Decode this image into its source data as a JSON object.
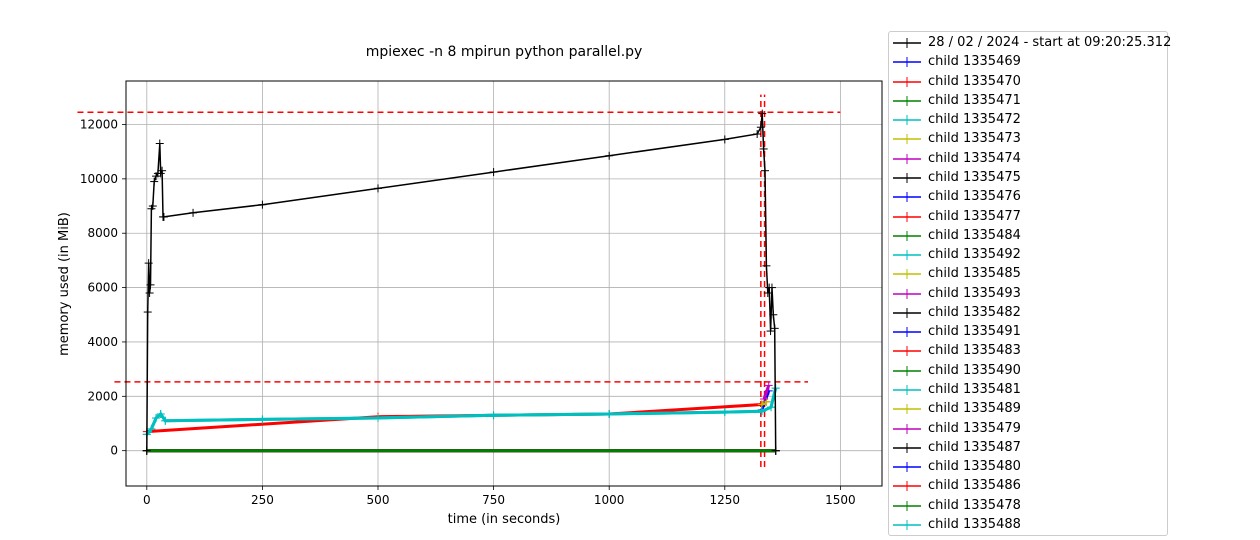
{
  "chart_data": {
    "type": "line",
    "title": "mpiexec -n 8 mpirun python parallel.py",
    "xlabel": "time (in seconds)",
    "ylabel": "memory used (in MiB)",
    "xlim": [
      -45,
      1590
    ],
    "ylim": [
      -1300,
      13600
    ],
    "xticks": [
      0,
      250,
      500,
      750,
      1000,
      1250,
      1500
    ],
    "xtick_labels": [
      "0",
      "250",
      "500",
      "750",
      "1000",
      "1250",
      "1500"
    ],
    "yticks": [
      0,
      2000,
      4000,
      6000,
      8000,
      10000,
      12000
    ],
    "ytick_labels": [
      "0",
      "2000",
      "4000",
      "6000",
      "8000",
      "10000",
      "12000"
    ],
    "grid": true,
    "legend_placement": "outside right",
    "series": [
      {
        "name": "28 / 02 / 2024 - start at 09:20:25.312",
        "color": "#000000",
        "x": [
          0,
          2,
          4,
          6,
          8,
          10,
          13,
          16,
          20,
          24,
          28,
          30,
          33,
          35,
          37,
          100,
          250,
          500,
          750,
          1000,
          1250,
          1320,
          1328,
          1331,
          1334,
          1337,
          1340,
          1343,
          1346,
          1349,
          1352,
          1355,
          1358,
          1360
        ],
        "y": [
          0,
          5100,
          6900,
          5800,
          6100,
          8900,
          9000,
          9900,
          10100,
          10200,
          11300,
          10200,
          10300,
          8600,
          8600,
          8750,
          9050,
          9650,
          10250,
          10850,
          11450,
          11650,
          11900,
          12400,
          11100,
          10300,
          6800,
          5800,
          6000,
          4400,
          6000,
          5000,
          4500,
          0
        ]
      },
      {
        "name": "child 1335469",
        "color": "#0000ff",
        "x": [
          1330,
          1345
        ],
        "y": [
          1500,
          2200
        ]
      },
      {
        "name": "child 1335470",
        "color": "#ff0000",
        "x": [
          0,
          500,
          1000,
          1330,
          1340
        ],
        "y": [
          700,
          1250,
          1350,
          1700,
          1800
        ]
      },
      {
        "name": "child 1335471",
        "color": "#008000",
        "x": [
          0,
          1360
        ],
        "y": [
          0,
          0
        ]
      },
      {
        "name": "child 1335472",
        "color": "#00bfbf",
        "x": [
          0,
          10,
          20,
          30,
          40,
          250,
          500,
          750,
          1000,
          1250,
          1330,
          1350,
          1360
        ],
        "y": [
          600,
          800,
          1200,
          1350,
          1100,
          1150,
          1200,
          1300,
          1350,
          1420,
          1450,
          1600,
          2300
        ]
      },
      {
        "name": "child 1335473",
        "color": "#bfbf00",
        "x": [
          1330,
          1340
        ],
        "y": [
          1700,
          1800
        ]
      },
      {
        "name": "child 1335474",
        "color": "#bf00bf",
        "x": [
          1335,
          1345
        ],
        "y": [
          1900,
          2400
        ]
      },
      {
        "name": "child 1335475",
        "color": "#000000",
        "x": [
          0,
          1360
        ],
        "y": [
          0,
          0
        ]
      },
      {
        "name": "child 1335476",
        "color": "#0000ff",
        "x": [
          0,
          1360
        ],
        "y": [
          0,
          0
        ]
      },
      {
        "name": "child 1335477",
        "color": "#ff0000",
        "x": [
          0,
          1360
        ],
        "y": [
          0,
          0
        ]
      },
      {
        "name": "child 1335484",
        "color": "#008000",
        "x": [
          0,
          1360
        ],
        "y": [
          0,
          0
        ]
      },
      {
        "name": "child 1335492",
        "color": "#00bfbf",
        "x": [
          0,
          1360
        ],
        "y": [
          0,
          0
        ]
      },
      {
        "name": "child 1335485",
        "color": "#bfbf00",
        "x": [
          0,
          1360
        ],
        "y": [
          0,
          0
        ]
      },
      {
        "name": "child 1335493",
        "color": "#bf00bf",
        "x": [
          0,
          1360
        ],
        "y": [
          0,
          0
        ]
      },
      {
        "name": "child 1335482",
        "color": "#000000",
        "x": [
          0,
          1360
        ],
        "y": [
          0,
          0
        ]
      },
      {
        "name": "child 1335491",
        "color": "#0000ff",
        "x": [
          0,
          1360
        ],
        "y": [
          0,
          0
        ]
      },
      {
        "name": "child 1335483",
        "color": "#ff0000",
        "x": [
          0,
          1360
        ],
        "y": [
          0,
          0
        ]
      },
      {
        "name": "child 1335490",
        "color": "#008000",
        "x": [
          0,
          1360
        ],
        "y": [
          0,
          0
        ]
      },
      {
        "name": "child 1335481",
        "color": "#00bfbf",
        "x": [
          0,
          1360
        ],
        "y": [
          0,
          0
        ]
      },
      {
        "name": "child 1335489",
        "color": "#bfbf00",
        "x": [
          0,
          1360
        ],
        "y": [
          0,
          0
        ]
      },
      {
        "name": "child 1335479",
        "color": "#bf00bf",
        "x": [
          0,
          1360
        ],
        "y": [
          0,
          0
        ]
      },
      {
        "name": "child 1335487",
        "color": "#000000",
        "x": [
          0,
          1360
        ],
        "y": [
          0,
          0
        ]
      },
      {
        "name": "child 1335480",
        "color": "#0000ff",
        "x": [
          0,
          1360
        ],
        "y": [
          0,
          0
        ]
      },
      {
        "name": "child 1335486",
        "color": "#ff0000",
        "x": [
          0,
          1360
        ],
        "y": [
          0,
          0
        ]
      },
      {
        "name": "child 1335478",
        "color": "#008000",
        "x": [
          0,
          1360
        ],
        "y": [
          0,
          0
        ]
      },
      {
        "name": "child 1335488",
        "color": "#00bfbf",
        "x": [
          0,
          10,
          20,
          30,
          40,
          250,
          500,
          750,
          1000,
          1250,
          1330,
          1350,
          1360
        ],
        "y": [
          600,
          800,
          1200,
          1350,
          1100,
          1150,
          1200,
          1300,
          1350,
          1420,
          1450,
          1600,
          2300
        ]
      }
    ],
    "reference_lines": [
      {
        "orientation": "horizontal",
        "value": 12450,
        "from": -150,
        "to": 1500,
        "color": "#ff0000",
        "style": "dashed"
      },
      {
        "orientation": "horizontal",
        "value": 2530,
        "from": -70,
        "to": 1430,
        "color": "#ff0000",
        "style": "dashed"
      },
      {
        "orientation": "vertical",
        "value": 1328,
        "from": -600,
        "to": 13100,
        "color": "#ff0000",
        "style": "dashed"
      },
      {
        "orientation": "vertical",
        "value": 1336,
        "from": -600,
        "to": 13100,
        "color": "#ff0000",
        "style": "dashed"
      }
    ]
  }
}
